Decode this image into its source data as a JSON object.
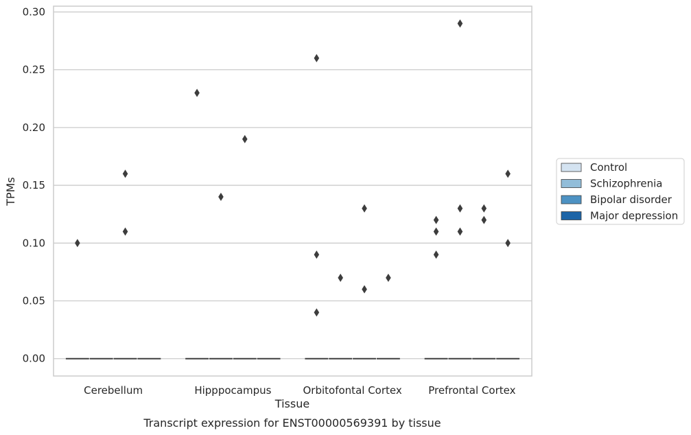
{
  "chart_data": {
    "type": "boxplot",
    "title": "",
    "caption": "Transcript expression for ENST00000569391 by tissue",
    "xlabel": "Tissue",
    "ylabel": "TPMs",
    "ylim": [
      -0.015,
      0.305
    ],
    "yticks": [
      "0.00",
      "0.05",
      "0.10",
      "0.15",
      "0.20",
      "0.25",
      "0.30"
    ],
    "ytick_values": [
      0.0,
      0.05,
      0.1,
      0.15,
      0.2,
      0.25,
      0.3
    ],
    "grid": "horizontal",
    "legend_position": "right",
    "categories": [
      "Cerebellum",
      "Hipppocampus",
      "Orbitofontal Cortex",
      "Prefrontal Cortex"
    ],
    "series": [
      {
        "name": "Control",
        "color": "#d4e3f1",
        "median": [
          0,
          0,
          0,
          0
        ],
        "outliers": [
          [
            0.1
          ],
          [
            0.23
          ],
          [
            0.26,
            0.09,
            0.04
          ],
          [
            0.09,
            0.11,
            0.12
          ]
        ]
      },
      {
        "name": "Schizophrenia",
        "color": "#92bdd9",
        "median": [
          0,
          0,
          0,
          0
        ],
        "outliers": [
          [],
          [
            0.14
          ],
          [
            0.07
          ],
          [
            0.29,
            0.13,
            0.11
          ]
        ]
      },
      {
        "name": "Bipolar disorder",
        "color": "#4d92c3",
        "median": [
          0,
          0,
          0,
          0
        ],
        "outliers": [
          [
            0.16,
            0.11
          ],
          [
            0.19
          ],
          [
            0.13,
            0.06
          ],
          [
            0.13,
            0.12
          ]
        ]
      },
      {
        "name": "Major depression",
        "color": "#1c64a7",
        "median": [
          0,
          0,
          0,
          0
        ],
        "outliers": [
          [],
          [],
          [
            0.07
          ],
          [
            0.16,
            0.1
          ]
        ]
      }
    ]
  }
}
